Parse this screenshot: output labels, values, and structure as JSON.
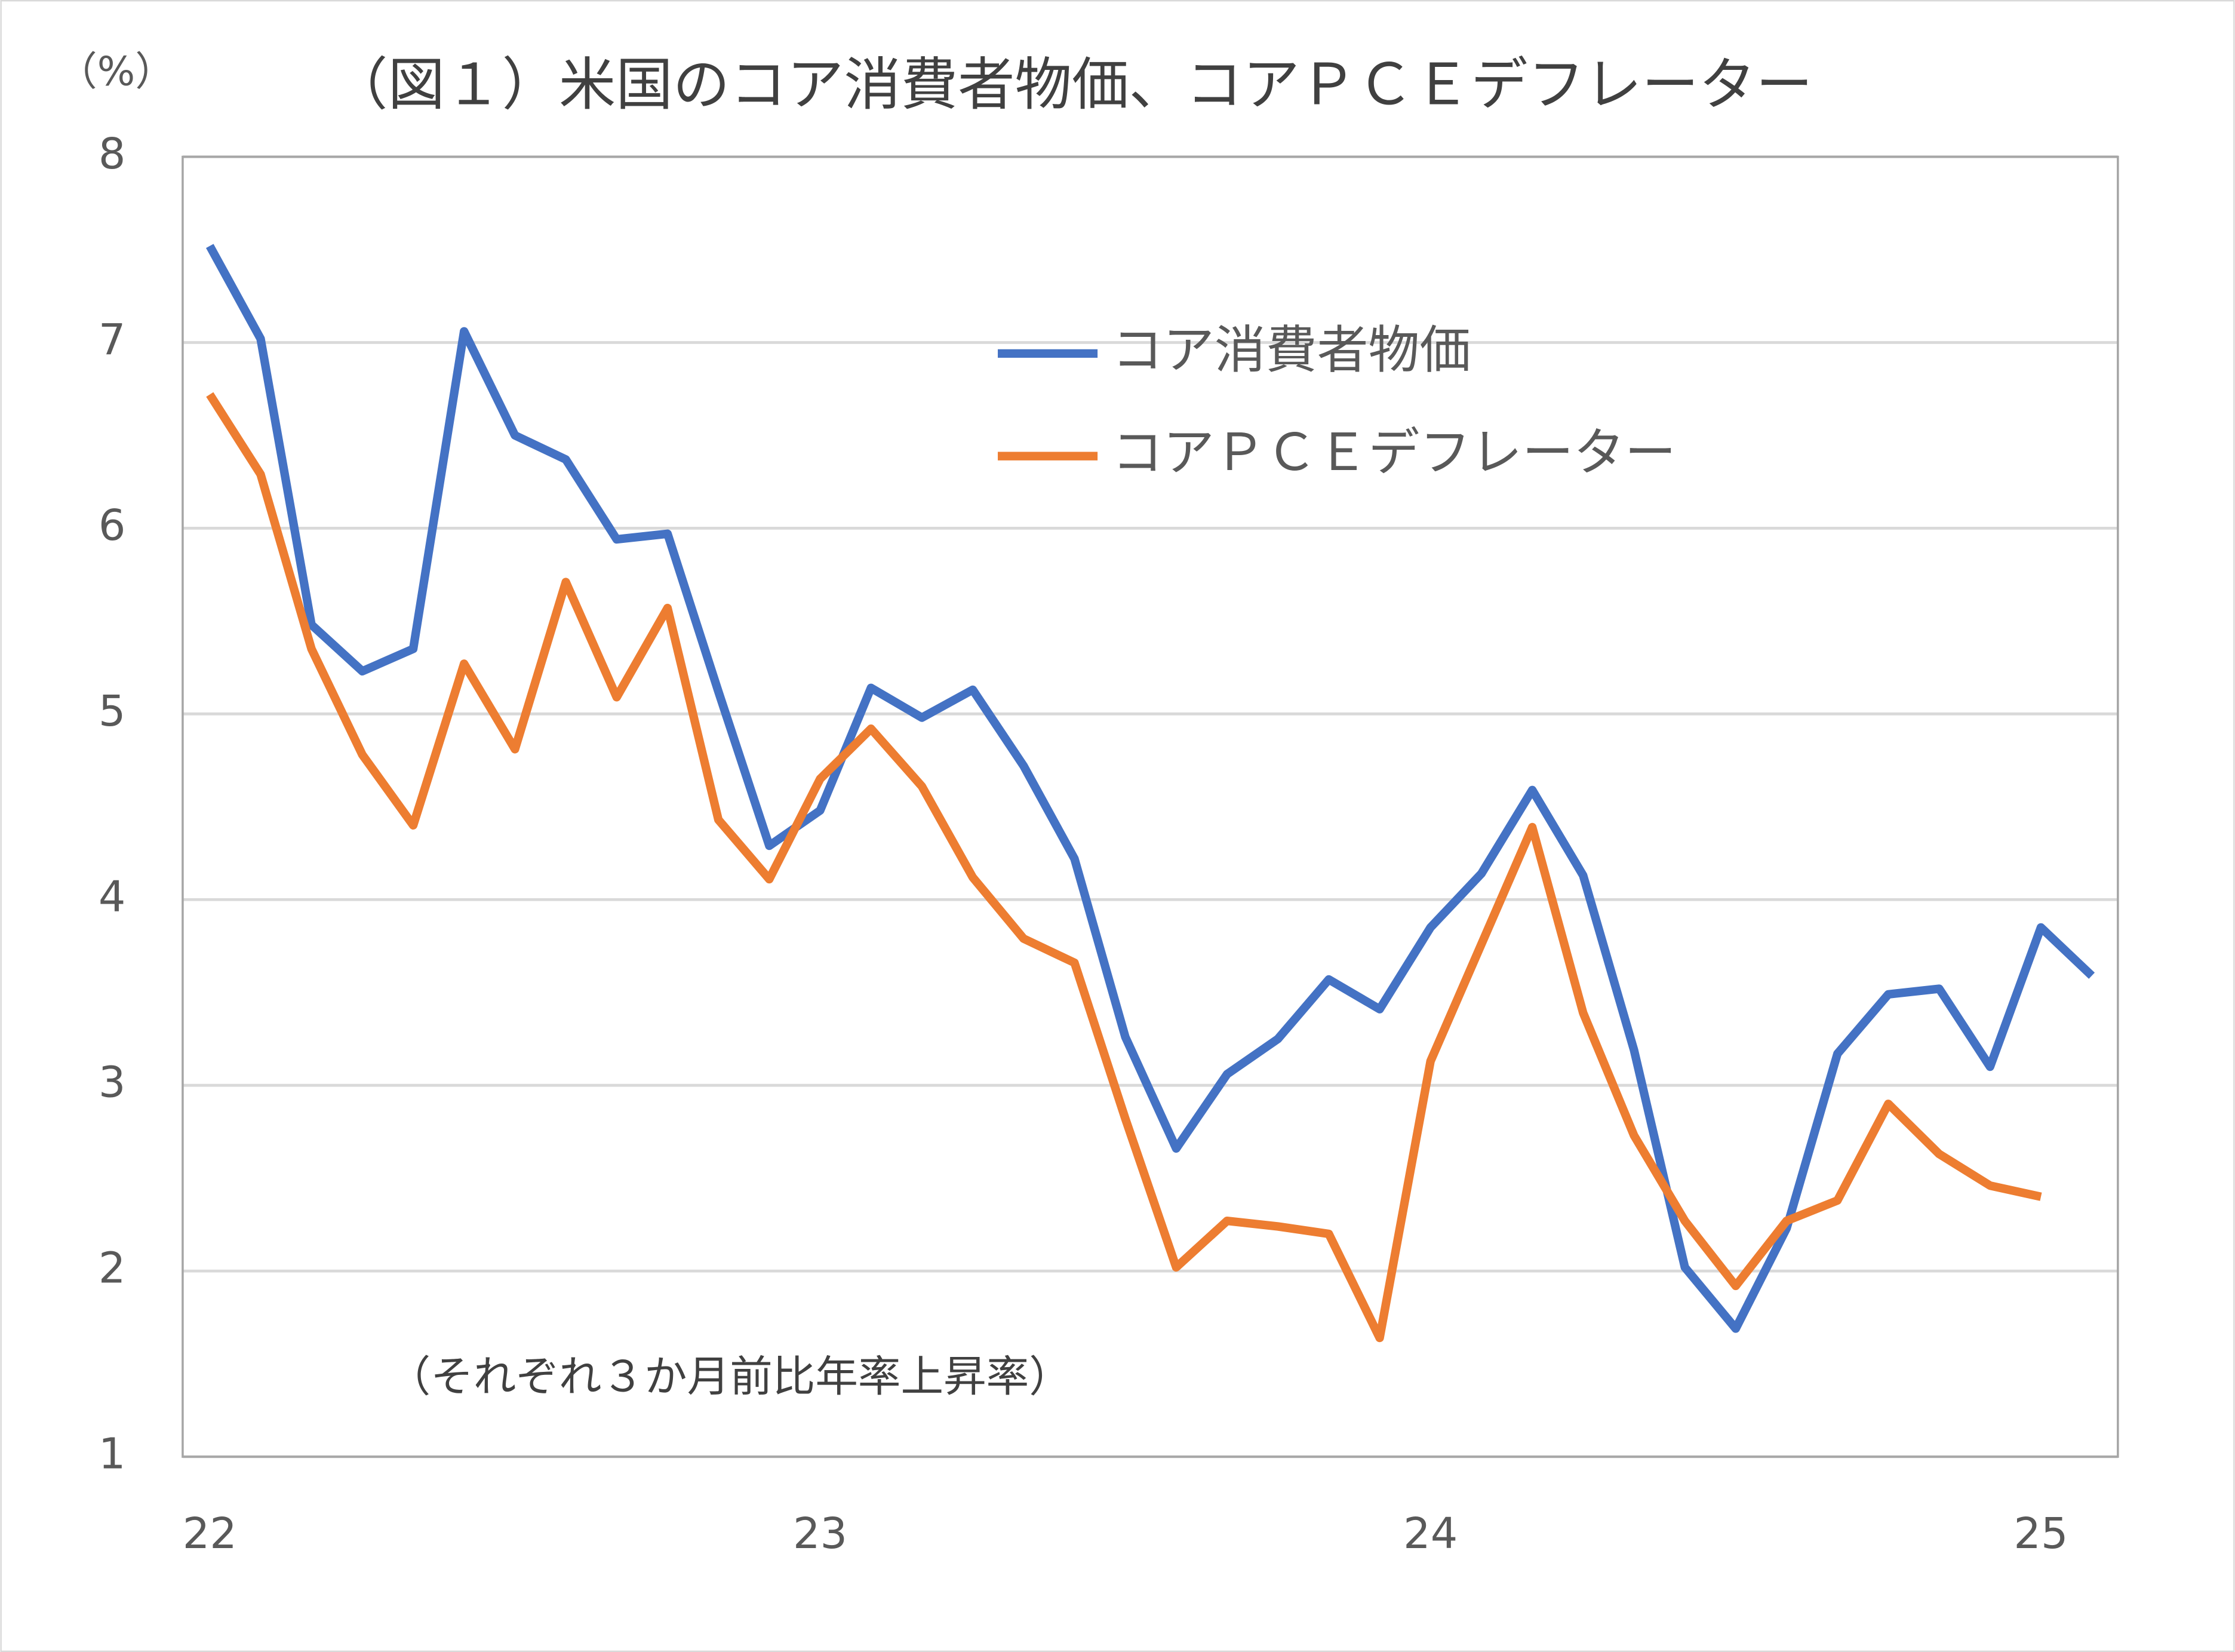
{
  "chart_data": {
    "type": "line",
    "title": "（図１）米国のコア消費者物価、コアＰＣＥデフレーター",
    "y_label": "（%）",
    "annotation": "（それぞれ３か月前比年率上昇率）",
    "categories": [
      "22",
      null,
      null,
      null,
      null,
      null,
      null,
      null,
      null,
      null,
      null,
      null,
      "23",
      null,
      null,
      null,
      null,
      null,
      null,
      null,
      null,
      null,
      null,
      null,
      "24",
      null,
      null,
      null,
      null,
      null,
      null,
      null,
      null,
      null,
      null,
      null,
      "25",
      null
    ],
    "series": [
      {
        "name": "コア消費者物価",
        "color": "#4472c4",
        "values": [
          7.52,
          7.02,
          5.48,
          5.23,
          5.35,
          7.06,
          6.5,
          6.37,
          5.94,
          5.97,
          5.12,
          4.29,
          4.48,
          5.14,
          4.98,
          5.13,
          4.72,
          4.22,
          3.26,
          2.66,
          3.06,
          3.25,
          3.57,
          3.41,
          3.85,
          4.14,
          4.59,
          4.13,
          3.19,
          2.02,
          1.69,
          2.23,
          3.17,
          3.49,
          3.52,
          3.1,
          3.85,
          3.59
        ]
      },
      {
        "name": "コアＰＣＥデフレーター",
        "color": "#ed7d31",
        "values": [
          6.72,
          6.29,
          5.35,
          4.78,
          4.4,
          5.27,
          4.81,
          5.71,
          5.09,
          5.57,
          4.43,
          4.11,
          4.65,
          4.92,
          4.61,
          4.12,
          3.79,
          3.66,
          2.82,
          2.02,
          2.27,
          2.24,
          2.2,
          1.64,
          3.13,
          3.76,
          4.39,
          3.39,
          2.73,
          2.27,
          1.92,
          2.27,
          2.38,
          2.9,
          2.63,
          2.46,
          2.4,
          null
        ]
      }
    ],
    "ylim": [
      1,
      8
    ],
    "yticks": [
      1,
      2,
      3,
      4,
      5,
      6,
      7,
      8
    ],
    "grid": true
  }
}
